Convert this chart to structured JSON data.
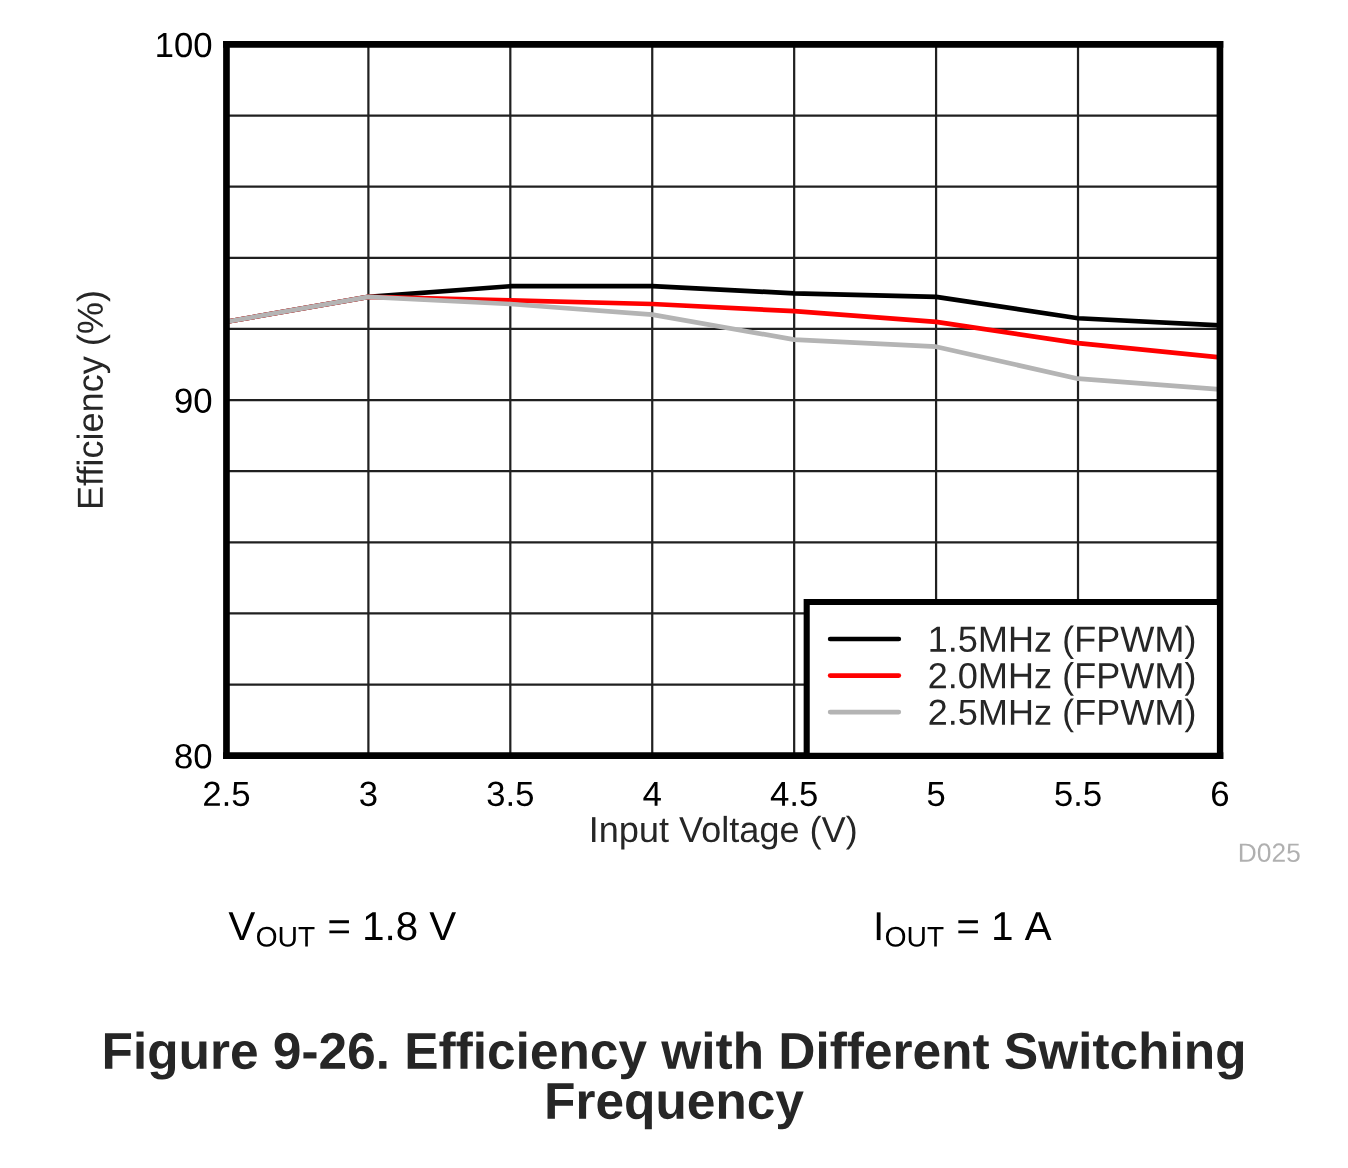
{
  "chart_data": {
    "type": "line",
    "title": "Figure 9-26. Efficiency with Different Switching Frequency",
    "xlabel": "Input Voltage (V)",
    "ylabel": "Efficiency (%)",
    "x": [
      2.5,
      3,
      3.5,
      4,
      4.5,
      5,
      5.5,
      6
    ],
    "series": [
      {
        "name": "1.5MHz (FPWM)",
        "color": "#000000",
        "values": [
          92.2,
          92.9,
          93.2,
          93.2,
          93.0,
          92.9,
          92.3,
          92.1
        ]
      },
      {
        "name": "2.0MHz (FPWM)",
        "color": "#ff0000",
        "values": [
          92.2,
          92.9,
          92.8,
          92.7,
          92.5,
          92.2,
          91.6,
          91.2
        ]
      },
      {
        "name": "2.5MHz (FPWM)",
        "color": "#b4b4b4",
        "values": [
          92.2,
          92.9,
          92.7,
          92.4,
          91.7,
          91.5,
          90.6,
          90.3
        ]
      }
    ],
    "xlim": [
      2.5,
      6
    ],
    "xticks": [
      2.5,
      3,
      3.5,
      4,
      4.5,
      5,
      5.5,
      6
    ],
    "ylim": [
      80,
      100
    ],
    "yticks": [
      80,
      {
        "value": 82,
        "label": null
      },
      {
        "value": 84,
        "label": null
      },
      {
        "value": 86,
        "label": null
      },
      {
        "value": 88,
        "label": null
      },
      90,
      {
        "value": 92,
        "label": null
      },
      {
        "value": 94,
        "label": null
      },
      {
        "value": 96,
        "label": null
      },
      {
        "value": 98,
        "label": null
      },
      100
    ],
    "grid": true,
    "legend": "bottom right",
    "line_style": "solid",
    "annotations": [
      "V$_{OUT}$ = 1.8 V",
      "I$_{OUT}$ = 1 A",
      "D025"
    ]
  }
}
